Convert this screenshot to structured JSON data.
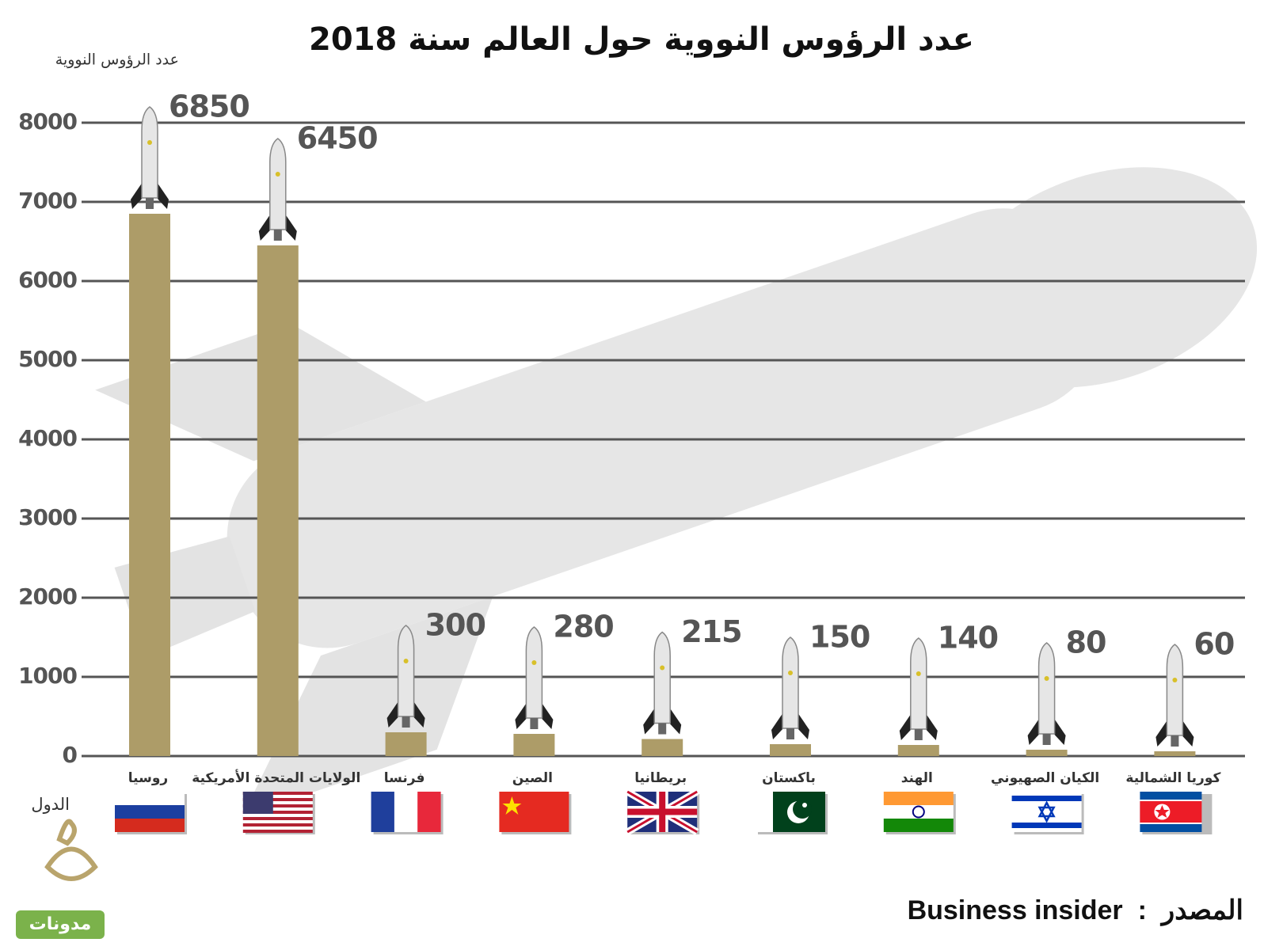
{
  "chart_data": {
    "type": "bar",
    "title": "عدد الرؤوس النووية حول العالم سنة 2018",
    "y_label": "عدد الرؤوس النووية",
    "x_label": "الدول",
    "categories": [
      "روسيا",
      "الولايات المتحدة الأمريكية",
      "فرنسا",
      "الصين",
      "بريطانيا",
      "باكستان",
      "الهند",
      "الكيان الصهيوني",
      "كوريا الشمالية"
    ],
    "values": [
      6850,
      6450,
      300,
      280,
      215,
      150,
      140,
      80,
      60
    ],
    "color": "#ad9c68",
    "ylim": [
      0,
      8000
    ],
    "yticks": [
      0,
      1000,
      2000,
      3000,
      4000,
      5000,
      6000,
      7000,
      8000
    ],
    "grid": true,
    "source": "المصدر  :  Business insider",
    "logo": "مدونات"
  }
}
